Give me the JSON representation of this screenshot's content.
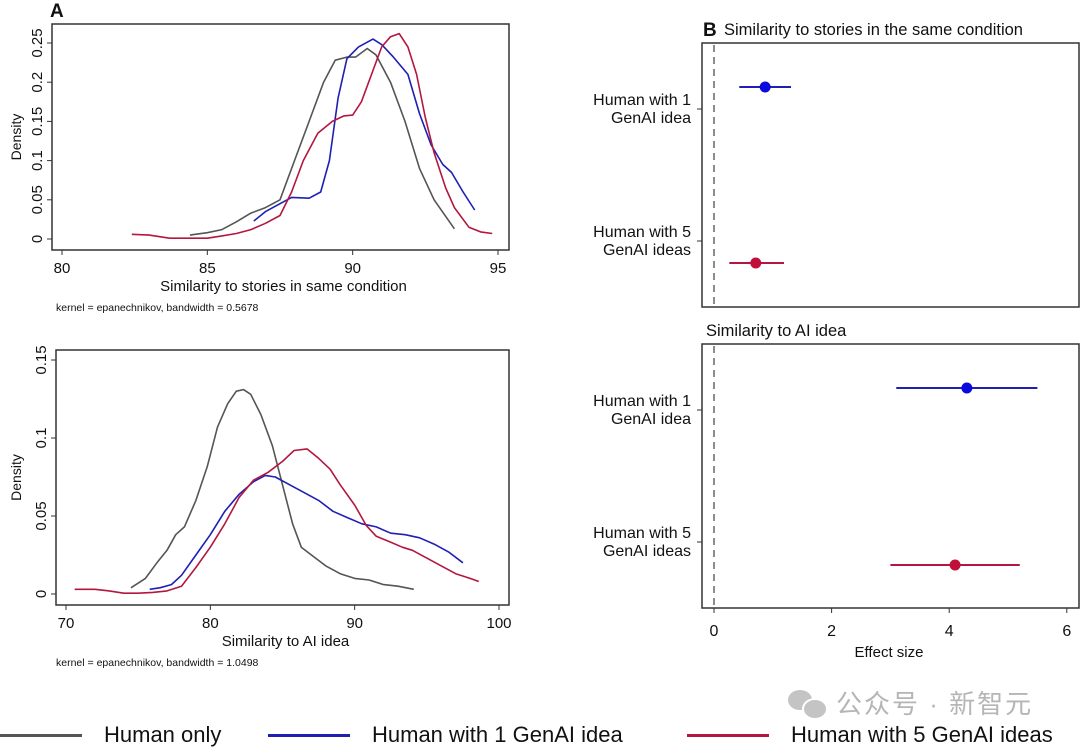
{
  "panel_a_label": "A",
  "panel_b_label": "B",
  "colors": {
    "human_only": "#555555",
    "human_1": "#1f1fb4",
    "human_5": "#b3173f",
    "dot_human_1": "#0a0adc",
    "dot_human_5": "#c0103a"
  },
  "legend": [
    {
      "label": "Human only",
      "color_key": "human_only"
    },
    {
      "label": "Human with 1 GenAI idea",
      "color_key": "human_1"
    },
    {
      "label": "Human with 5 GenAI ideas",
      "color_key": "human_5"
    }
  ],
  "watermark": {
    "icon": "wechat-icon",
    "text": "公众号 · 新智元"
  },
  "chart_data": [
    {
      "type": "line",
      "panel": "A-top",
      "title": "",
      "xlabel": "Similarity to stories in same condition",
      "ylabel": "Density",
      "note": "kernel = epanechnikov, bandwidth = 0.5678",
      "xlim": [
        80,
        95
      ],
      "ylim": [
        0,
        0.25
      ],
      "xticks": [
        80,
        85,
        90,
        95
      ],
      "yticks": [
        0,
        0.05,
        0.1,
        0.15,
        0.2,
        0.25
      ],
      "ytick_labels": [
        "0",
        "0.05",
        "0.1",
        "0.15",
        "0.2",
        "0.25"
      ],
      "grid": false,
      "series": [
        {
          "name": "Human only",
          "color_key": "human_only",
          "x": [
            84.4,
            85,
            85.5,
            86,
            86.5,
            87,
            87.5,
            88,
            88.5,
            89,
            89.4,
            89.8,
            90.1,
            90.5,
            90.8,
            91.3,
            91.8,
            92.3,
            92.8,
            93.5
          ],
          "y": [
            0.005,
            0.008,
            0.012,
            0.022,
            0.033,
            0.04,
            0.05,
            0.1,
            0.15,
            0.2,
            0.228,
            0.232,
            0.232,
            0.243,
            0.235,
            0.2,
            0.15,
            0.09,
            0.05,
            0.013
          ]
        },
        {
          "name": "Human with 1 GenAI idea",
          "color_key": "human_1",
          "x": [
            86.6,
            87,
            87.5,
            87.9,
            88.5,
            88.9,
            89.2,
            89.5,
            89.8,
            90.2,
            90.7,
            91,
            91.4,
            91.9,
            92.3,
            92.7,
            93.1,
            93.4,
            93.8,
            94.2
          ],
          "y": [
            0.023,
            0.035,
            0.045,
            0.053,
            0.052,
            0.06,
            0.1,
            0.18,
            0.23,
            0.245,
            0.255,
            0.248,
            0.232,
            0.21,
            0.16,
            0.12,
            0.095,
            0.085,
            0.06,
            0.037
          ]
        },
        {
          "name": "Human with 5 GenAI ideas",
          "color_key": "human_5",
          "x": [
            82.4,
            83,
            83.7,
            84.5,
            85,
            85.5,
            86,
            86.5,
            87,
            87.5,
            87.9,
            88.3,
            88.8,
            89.3,
            89.7,
            90,
            90.3,
            90.7,
            91,
            91.3,
            91.6,
            91.9,
            92.2,
            92.5,
            92.8,
            93.2,
            93.5,
            94,
            94.4,
            94.8
          ],
          "y": [
            0.006,
            0.005,
            0.001,
            0.001,
            0.001,
            0.004,
            0.007,
            0.012,
            0.02,
            0.03,
            0.06,
            0.1,
            0.135,
            0.15,
            0.157,
            0.158,
            0.175,
            0.215,
            0.245,
            0.258,
            0.262,
            0.245,
            0.21,
            0.155,
            0.11,
            0.065,
            0.04,
            0.015,
            0.009,
            0.007
          ]
        }
      ]
    },
    {
      "type": "line",
      "panel": "A-bottom",
      "title": "",
      "xlabel": "Similarity to AI idea",
      "ylabel": "Density",
      "note": "kernel = epanechnikov, bandwidth = 1.0498",
      "xlim": [
        70,
        100
      ],
      "ylim": [
        0,
        0.15
      ],
      "xticks": [
        70,
        80,
        90,
        100
      ],
      "yticks": [
        0,
        0.05,
        0.1,
        0.15
      ],
      "ytick_labels": [
        "0",
        "0.05",
        "0.1",
        "0.15"
      ],
      "grid": false,
      "series": [
        {
          "name": "Human only",
          "color_key": "human_only",
          "x": [
            74.5,
            75.5,
            76.3,
            77,
            77.6,
            78.2,
            79,
            79.8,
            80.5,
            81.2,
            81.8,
            82.3,
            82.8,
            83.5,
            84.3,
            85,
            85.7,
            86.3,
            87,
            88,
            89,
            90,
            91,
            92,
            93,
            94.1
          ],
          "y": [
            0.004,
            0.01,
            0.02,
            0.028,
            0.038,
            0.043,
            0.06,
            0.082,
            0.107,
            0.122,
            0.13,
            0.131,
            0.128,
            0.115,
            0.095,
            0.07,
            0.045,
            0.03,
            0.025,
            0.018,
            0.013,
            0.01,
            0.009,
            0.006,
            0.005,
            0.003
          ]
        },
        {
          "name": "Human with 1 GenAI idea",
          "color_key": "human_1",
          "x": [
            75.8,
            76.5,
            77.3,
            78,
            79,
            80,
            81,
            82,
            83,
            83.8,
            84.5,
            85.5,
            86.5,
            87.5,
            88.5,
            89.5,
            90.5,
            91.5,
            92.5,
            93.5,
            94.5,
            95.5,
            96.5,
            97.5
          ],
          "y": [
            0.003,
            0.004,
            0.006,
            0.012,
            0.025,
            0.038,
            0.053,
            0.064,
            0.072,
            0.076,
            0.075,
            0.07,
            0.065,
            0.06,
            0.053,
            0.049,
            0.045,
            0.043,
            0.039,
            0.038,
            0.036,
            0.032,
            0.027,
            0.02
          ]
        },
        {
          "name": "Human with 5 GenAI ideas",
          "color_key": "human_5",
          "x": [
            70.6,
            72,
            73,
            74,
            75,
            76,
            77,
            78,
            79,
            80,
            81,
            82,
            83,
            84,
            85,
            85.8,
            86.7,
            87.5,
            88.3,
            89,
            90,
            90.8,
            91.5,
            92.3,
            93.3,
            94,
            95,
            96,
            97,
            98,
            98.6
          ],
          "y": [
            0.003,
            0.003,
            0.002,
            0.0005,
            0.0005,
            0.001,
            0.002,
            0.005,
            0.017,
            0.03,
            0.045,
            0.062,
            0.073,
            0.078,
            0.085,
            0.092,
            0.093,
            0.087,
            0.08,
            0.07,
            0.057,
            0.044,
            0.037,
            0.034,
            0.03,
            0.028,
            0.023,
            0.018,
            0.013,
            0.01,
            0.008
          ]
        }
      ]
    },
    {
      "type": "scatter",
      "panel": "B-top",
      "title": "Similarity to stories in the same condition",
      "xlabel": "",
      "xlim": [
        -0.2,
        6.2
      ],
      "reference_line": 0,
      "categories": [
        "Human with 1\nGenAI idea",
        "Human with 5\nGenAI ideas"
      ],
      "category_lines": [
        [
          "Human with 1",
          "GenAI idea"
        ],
        [
          "Human with 5",
          "GenAI ideas"
        ]
      ],
      "points": [
        {
          "category": "Human with 1 GenAI idea",
          "estimate": 0.87,
          "ci_low": 0.43,
          "ci_high": 1.31,
          "color_key": "dot_human_1",
          "line_key": "human_1"
        },
        {
          "category": "Human with 5 GenAI ideas",
          "estimate": 0.71,
          "ci_low": 0.26,
          "ci_high": 1.19,
          "color_key": "dot_human_5",
          "line_key": "human_5"
        }
      ]
    },
    {
      "type": "scatter",
      "panel": "B-bottom",
      "title": "Similarity to AI idea",
      "xlabel": "Effect size",
      "xlim": [
        -0.2,
        6.2
      ],
      "xticks": [
        0,
        2,
        4,
        6
      ],
      "reference_line": 0,
      "categories": [
        "Human with 1\nGenAI idea",
        "Human with 5\nGenAI ideas"
      ],
      "category_lines": [
        [
          "Human with 1",
          "GenAI idea"
        ],
        [
          "Human with 5",
          "GenAI ideas"
        ]
      ],
      "points": [
        {
          "category": "Human with 1 GenAI idea",
          "estimate": 4.3,
          "ci_low": 3.1,
          "ci_high": 5.5,
          "color_key": "dot_human_1",
          "line_key": "human_1"
        },
        {
          "category": "Human with 5 GenAI ideas",
          "estimate": 4.1,
          "ci_low": 3.0,
          "ci_high": 5.2,
          "color_key": "dot_human_5",
          "line_key": "human_5"
        }
      ]
    }
  ]
}
